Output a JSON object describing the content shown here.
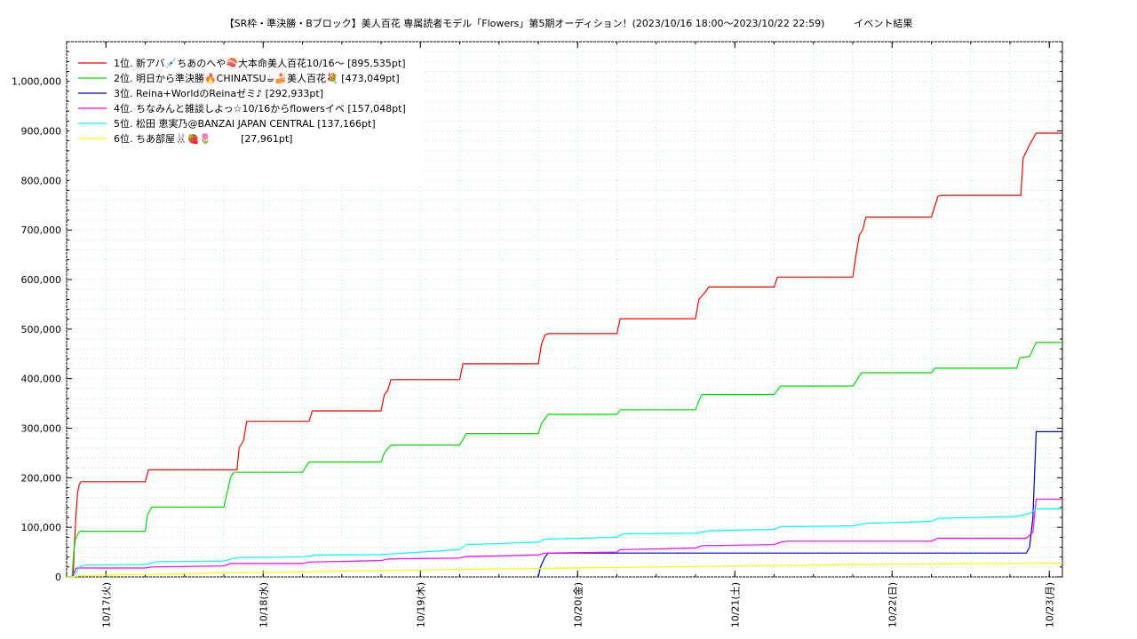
{
  "chart_data": {
    "type": "line",
    "title": "【SR枠・準決勝・Bブロック】美人百花 専属読者モデル「Flowers」第5期オーディション！(2023/10/16 18:00〜2023/10/22 22:59)　　　イベント結果",
    "xlabel": "",
    "ylabel": "",
    "ylim": [
      0,
      1080000
    ],
    "xlim": [
      "2023-10-16 18:00",
      "2023-10-23 02:00"
    ],
    "grid": true,
    "legend_position": "top-left",
    "y_ticks": [
      {
        "value": 0,
        "label": "0"
      },
      {
        "value": 100000,
        "label": "100,000"
      },
      {
        "value": 200000,
        "label": "200,000"
      },
      {
        "value": 300000,
        "label": "300,000"
      },
      {
        "value": 400000,
        "label": "400,000"
      },
      {
        "value": 500000,
        "label": "500,000"
      },
      {
        "value": 600000,
        "label": "600,000"
      },
      {
        "value": 700000,
        "label": "700,000"
      },
      {
        "value": 800000,
        "label": "800,000"
      },
      {
        "value": 900000,
        "label": "900,000"
      },
      {
        "value": 1000000,
        "label": "1,000,000"
      }
    ],
    "x_ticks": [
      {
        "value": "2023-10-17 00:00",
        "label": "10/17(火)"
      },
      {
        "value": "2023-10-18 00:00",
        "label": "10/18(水)"
      },
      {
        "value": "2023-10-19 00:00",
        "label": "10/19(木)"
      },
      {
        "value": "2023-10-20 00:00",
        "label": "10/20(金)"
      },
      {
        "value": "2023-10-21 00:00",
        "label": "10/21(土)"
      },
      {
        "value": "2023-10-22 00:00",
        "label": "10/22(日)"
      },
      {
        "value": "2023-10-23 00:00",
        "label": "10/23(月)"
      }
    ],
    "series": [
      {
        "name": "1位. 新アバ💉ちあのへや🍣大本命美人百花10/16〜 [895,535pt]",
        "color": "#ff0000",
        "points": [
          [
            "2023-10-16 18:00",
            0
          ],
          [
            "2023-10-16 19:00",
            0
          ],
          [
            "2023-10-16 19:10",
            60000
          ],
          [
            "2023-10-16 19:25",
            120000
          ],
          [
            "2023-10-16 19:40",
            170000
          ],
          [
            "2023-10-16 19:55",
            185000
          ],
          [
            "2023-10-16 20:10",
            192000
          ],
          [
            "2023-10-17 06:00",
            192000
          ],
          [
            "2023-10-17 06:30",
            216000
          ],
          [
            "2023-10-17 20:00",
            216000
          ],
          [
            "2023-10-17 20:20",
            260000
          ],
          [
            "2023-10-17 21:00",
            275000
          ],
          [
            "2023-10-17 21:30",
            314000
          ],
          [
            "2023-10-18 07:00",
            314000
          ],
          [
            "2023-10-18 07:30",
            335000
          ],
          [
            "2023-10-18 18:00",
            335000
          ],
          [
            "2023-10-18 18:30",
            368000
          ],
          [
            "2023-10-18 19:00",
            376000
          ],
          [
            "2023-10-18 19:30",
            398000
          ],
          [
            "2023-10-19 06:00",
            398000
          ],
          [
            "2023-10-19 06:30",
            430000
          ],
          [
            "2023-10-19 18:00",
            430000
          ],
          [
            "2023-10-19 18:30",
            470000
          ],
          [
            "2023-10-19 19:00",
            488000
          ],
          [
            "2023-10-19 19:30",
            491000
          ],
          [
            "2023-10-20 06:00",
            491000
          ],
          [
            "2023-10-20 06:30",
            521000
          ],
          [
            "2023-10-20 18:00",
            521000
          ],
          [
            "2023-10-20 18:30",
            560000
          ],
          [
            "2023-10-20 19:30",
            575000
          ],
          [
            "2023-10-20 20:00",
            585000
          ],
          [
            "2023-10-21 06:00",
            585000
          ],
          [
            "2023-10-21 06:30",
            605000
          ],
          [
            "2023-10-21 18:00",
            605000
          ],
          [
            "2023-10-21 18:30",
            650000
          ],
          [
            "2023-10-21 19:00",
            690000
          ],
          [
            "2023-10-21 19:30",
            700000
          ],
          [
            "2023-10-21 20:00",
            726000
          ],
          [
            "2023-10-22 06:00",
            726000
          ],
          [
            "2023-10-22 07:00",
            768000
          ],
          [
            "2023-10-22 07:30",
            770000
          ],
          [
            "2023-10-22 19:40",
            770000
          ],
          [
            "2023-10-22 20:00",
            845000
          ],
          [
            "2023-10-22 21:00",
            872000
          ],
          [
            "2023-10-22 22:00",
            895535
          ],
          [
            "2023-10-23 02:00",
            895535
          ]
        ]
      },
      {
        "name": "2位. 明日から準決勝🔥CHINATSU☕🍰美人百花💐 [473,049pt]",
        "color": "#00dd00",
        "points": [
          [
            "2023-10-16 18:00",
            0
          ],
          [
            "2023-10-16 18:50",
            0
          ],
          [
            "2023-10-16 19:05",
            50000
          ],
          [
            "2023-10-16 19:20",
            75000
          ],
          [
            "2023-10-16 19:40",
            85000
          ],
          [
            "2023-10-16 20:00",
            92000
          ],
          [
            "2023-10-17 06:00",
            92000
          ],
          [
            "2023-10-17 06:20",
            125000
          ],
          [
            "2023-10-17 07:00",
            141000
          ],
          [
            "2023-10-17 18:00",
            141000
          ],
          [
            "2023-10-17 18:30",
            170000
          ],
          [
            "2023-10-17 19:00",
            200000
          ],
          [
            "2023-10-17 19:30",
            211000
          ],
          [
            "2023-10-18 06:00",
            211000
          ],
          [
            "2023-10-18 07:00",
            232000
          ],
          [
            "2023-10-18 18:00",
            232000
          ],
          [
            "2023-10-18 18:30",
            250000
          ],
          [
            "2023-10-18 19:30",
            266000
          ],
          [
            "2023-10-19 06:00",
            266000
          ],
          [
            "2023-10-19 07:00",
            289000
          ],
          [
            "2023-10-19 18:00",
            289000
          ],
          [
            "2023-10-19 18:30",
            310000
          ],
          [
            "2023-10-19 19:30",
            328000
          ],
          [
            "2023-10-20 06:00",
            328000
          ],
          [
            "2023-10-20 06:30",
            337000
          ],
          [
            "2023-10-20 18:00",
            337000
          ],
          [
            "2023-10-20 18:30",
            355000
          ],
          [
            "2023-10-20 19:00",
            368000
          ],
          [
            "2023-10-21 06:00",
            368000
          ],
          [
            "2023-10-21 07:00",
            385000
          ],
          [
            "2023-10-21 18:00",
            385000
          ],
          [
            "2023-10-21 18:40",
            398000
          ],
          [
            "2023-10-21 19:20",
            412000
          ],
          [
            "2023-10-22 06:00",
            412000
          ],
          [
            "2023-10-22 06:30",
            421000
          ],
          [
            "2023-10-22 19:00",
            421000
          ],
          [
            "2023-10-22 19:30",
            442000
          ],
          [
            "2023-10-22 21:00",
            445000
          ],
          [
            "2023-10-22 22:00",
            473049
          ],
          [
            "2023-10-23 02:00",
            473049
          ]
        ]
      },
      {
        "name": "3位. Reina+WorldのReinaゼミ♪ [292,933pt]",
        "color": "#0000cc",
        "points": [
          [
            "2023-10-19 18:00",
            0
          ],
          [
            "2023-10-19 18:20",
            20000
          ],
          [
            "2023-10-19 19:00",
            40000
          ],
          [
            "2023-10-19 19:30",
            48000
          ],
          [
            "2023-10-22 20:30",
            48000
          ],
          [
            "2023-10-22 21:00",
            60000
          ],
          [
            "2023-10-22 21:30",
            120000
          ],
          [
            "2023-10-22 22:00",
            292933
          ],
          [
            "2023-10-23 02:00",
            292933
          ]
        ]
      },
      {
        "name": "4位. ちなみんと雑談しよっ☆10/16からflowersイベ [157,048pt]",
        "color": "#ff00ff",
        "points": [
          [
            "2023-10-16 18:00",
            0
          ],
          [
            "2023-10-16 18:50",
            0
          ],
          [
            "2023-10-16 19:30",
            18000
          ],
          [
            "2023-10-17 06:00",
            18000
          ],
          [
            "2023-10-17 07:00",
            20000
          ],
          [
            "2023-10-17 18:00",
            22000
          ],
          [
            "2023-10-17 19:00",
            27000
          ],
          [
            "2023-10-18 06:00",
            27000
          ],
          [
            "2023-10-18 07:00",
            30000
          ],
          [
            "2023-10-18 18:00",
            33000
          ],
          [
            "2023-10-18 19:00",
            36000
          ],
          [
            "2023-10-19 06:00",
            38000
          ],
          [
            "2023-10-19 07:00",
            41000
          ],
          [
            "2023-10-19 18:00",
            44000
          ],
          [
            "2023-10-19 19:00",
            48000
          ],
          [
            "2023-10-20 06:00",
            50000
          ],
          [
            "2023-10-20 06:30",
            55000
          ],
          [
            "2023-10-20 18:00",
            58000
          ],
          [
            "2023-10-20 19:00",
            63000
          ],
          [
            "2023-10-21 06:00",
            65000
          ],
          [
            "2023-10-21 07:00",
            70000
          ],
          [
            "2023-10-21 08:00",
            72000
          ],
          [
            "2023-10-22 06:00",
            72000
          ],
          [
            "2023-10-22 07:00",
            78000
          ],
          [
            "2023-10-22 20:30",
            78000
          ],
          [
            "2023-10-22 21:30",
            90000
          ],
          [
            "2023-10-22 22:00",
            157048
          ],
          [
            "2023-10-23 02:00",
            157048
          ]
        ]
      },
      {
        "name": "5位. 松田 恵実乃@BANZAI JAPAN CENTRAL [137,166pt]",
        "color": "#00ffff",
        "points": [
          [
            "2023-10-16 18:00",
            0
          ],
          [
            "2023-10-16 19:00",
            0
          ],
          [
            "2023-10-16 20:00",
            20000
          ],
          [
            "2023-10-16 21:00",
            24000
          ],
          [
            "2023-10-17 06:00",
            25000
          ],
          [
            "2023-10-17 08:00",
            31000
          ],
          [
            "2023-10-17 18:00",
            32000
          ],
          [
            "2023-10-17 20:00",
            39000
          ],
          [
            "2023-10-18 06:00",
            40000
          ],
          [
            "2023-10-18 08:00",
            44000
          ],
          [
            "2023-10-18 18:00",
            45000
          ],
          [
            "2023-10-19 06:00",
            55000
          ],
          [
            "2023-10-19 07:00",
            65000
          ],
          [
            "2023-10-19 18:00",
            70000
          ],
          [
            "2023-10-19 19:00",
            76000
          ],
          [
            "2023-10-20 06:00",
            80000
          ],
          [
            "2023-10-20 07:00",
            87000
          ],
          [
            "2023-10-20 18:00",
            88000
          ],
          [
            "2023-10-20 20:00",
            93000
          ],
          [
            "2023-10-21 06:00",
            96000
          ],
          [
            "2023-10-21 07:00",
            101000
          ],
          [
            "2023-10-21 18:00",
            103000
          ],
          [
            "2023-10-21 20:00",
            108000
          ],
          [
            "2023-10-22 06:00",
            112000
          ],
          [
            "2023-10-22 07:00",
            118000
          ],
          [
            "2023-10-22 19:00",
            122000
          ],
          [
            "2023-10-22 21:00",
            128000
          ],
          [
            "2023-10-22 22:00",
            137166
          ],
          [
            "2023-10-23 02:00",
            137166
          ]
        ]
      },
      {
        "name": "6位. ちあ部屋🐰🍓🌷　　　[27,961pt]",
        "color": "#ffff00",
        "points": [
          [
            "2023-10-16 18:00",
            0
          ],
          [
            "2023-10-16 19:00",
            0
          ],
          [
            "2023-10-16 20:00",
            3000
          ],
          [
            "2023-10-17 06:00",
            5000
          ],
          [
            "2023-10-17 18:00",
            8000
          ],
          [
            "2023-10-18 06:00",
            10000
          ],
          [
            "2023-10-18 18:00",
            13000
          ],
          [
            "2023-10-19 06:00",
            15000
          ],
          [
            "2023-10-19 18:00",
            17000
          ],
          [
            "2023-10-20 06:00",
            19000
          ],
          [
            "2023-10-20 18:00",
            21000
          ],
          [
            "2023-10-21 06:00",
            23000
          ],
          [
            "2023-10-21 18:00",
            25000
          ],
          [
            "2023-10-22 06:00",
            26000
          ],
          [
            "2023-10-22 18:00",
            27000
          ],
          [
            "2023-10-22 22:00",
            27961
          ],
          [
            "2023-10-23 02:00",
            27961
          ]
        ]
      }
    ]
  }
}
